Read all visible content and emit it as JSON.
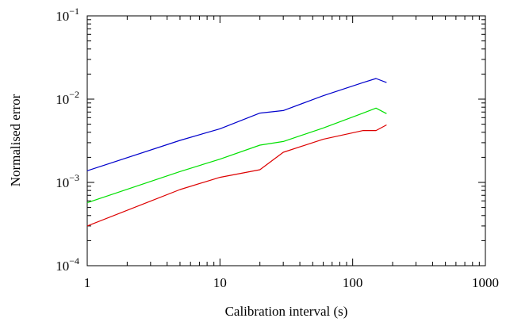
{
  "chart_data": {
    "type": "line",
    "xlabel": "Calibration interval (s)",
    "ylabel": "Normalised error",
    "xscale": "log",
    "yscale": "log",
    "xlim": [
      1,
      1000
    ],
    "ylim": [
      0.0001,
      0.1
    ],
    "x_ticks": [
      {
        "value": 1,
        "label": "1"
      },
      {
        "value": 10,
        "label": "10"
      },
      {
        "value": 100,
        "label": "100"
      },
      {
        "value": 1000,
        "label": "1000"
      }
    ],
    "y_ticks": [
      {
        "value": 0.0001,
        "base": "10",
        "exp": "−4"
      },
      {
        "value": 0.001,
        "base": "10",
        "exp": "−3"
      },
      {
        "value": 0.01,
        "base": "10",
        "exp": "−2"
      },
      {
        "value": 0.1,
        "base": "10",
        "exp": "−1"
      }
    ],
    "grid": false,
    "legend": "none",
    "series": [
      {
        "color": "#0000cc",
        "x": [
          1,
          5,
          10,
          20,
          30,
          60,
          120,
          150,
          180
        ],
        "y": [
          0.00138,
          0.0032,
          0.0044,
          0.0068,
          0.0073,
          0.011,
          0.0158,
          0.0177,
          0.0158
        ]
      },
      {
        "color": "#00e000",
        "x": [
          1,
          5,
          10,
          20,
          30,
          60,
          120,
          150,
          180
        ],
        "y": [
          0.00057,
          0.00135,
          0.0019,
          0.0028,
          0.0031,
          0.0045,
          0.0068,
          0.0078,
          0.0067
        ]
      },
      {
        "color": "#dd0000",
        "x": [
          1,
          5,
          10,
          20,
          30,
          60,
          120,
          150,
          180
        ],
        "y": [
          0.0003,
          0.00082,
          0.00115,
          0.00142,
          0.0023,
          0.0033,
          0.0042,
          0.0042,
          0.0049
        ]
      }
    ]
  }
}
